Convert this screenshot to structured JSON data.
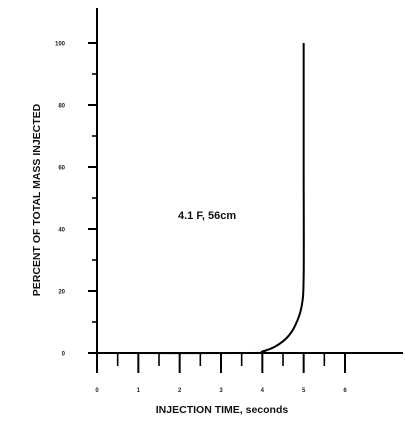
{
  "chart_data": {
    "type": "line",
    "title": "",
    "xlabel": "INJECTION TIME, seconds",
    "ylabel": "PERCENT OF TOTAL MASS INJECTED",
    "annotation": "4.1 F, 56cm",
    "xlim": [
      0,
      6
    ],
    "ylim": [
      0,
      100
    ],
    "x_tick_labels": [
      "0",
      "1",
      "2",
      "3",
      "4",
      "5",
      "6"
    ],
    "y_tick_labels": [
      "0",
      "20",
      "40",
      "60",
      "80",
      "100"
    ],
    "grid": false,
    "series": [
      {
        "x": [
          0,
          3.7,
          4.0,
          4.3,
          4.6,
          4.8,
          4.95,
          5.0,
          5.0,
          5.0
        ],
        "y": [
          0,
          0,
          0.5,
          2,
          5,
          9,
          15,
          25,
          60,
          100
        ],
        "color": "#000000"
      }
    ]
  }
}
